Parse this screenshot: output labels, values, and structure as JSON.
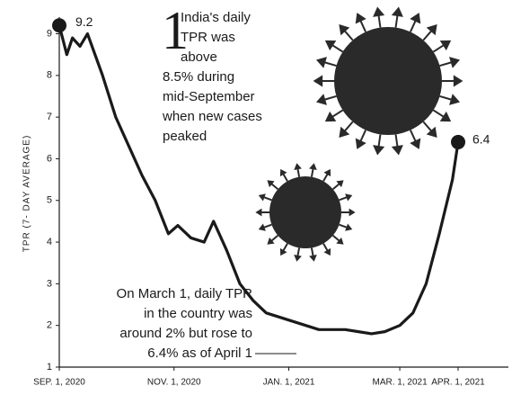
{
  "chart_data": {
    "type": "line",
    "ylabel": "TPR (7- DAY AVERAGE)",
    "x": [
      "2020-09-01",
      "2020-09-05",
      "2020-09-08",
      "2020-09-12",
      "2020-09-16",
      "2020-09-20",
      "2020-09-24",
      "2020-10-01",
      "2020-10-08",
      "2020-10-15",
      "2020-10-22",
      "2020-10-29",
      "2020-11-03",
      "2020-11-10",
      "2020-11-17",
      "2020-11-22",
      "2020-11-29",
      "2020-12-06",
      "2020-12-13",
      "2020-12-20",
      "2020-12-27",
      "2021-01-03",
      "2021-01-10",
      "2021-01-17",
      "2021-01-24",
      "2021-01-31",
      "2021-02-07",
      "2021-02-14",
      "2021-02-21",
      "2021-03-01",
      "2021-03-08",
      "2021-03-15",
      "2021-03-22",
      "2021-03-29",
      "2021-04-01"
    ],
    "series": [
      {
        "color": "#1a1a1a",
        "values": [
          9.2,
          8.5,
          8.9,
          8.7,
          9.0,
          8.5,
          8.0,
          7.0,
          6.3,
          5.6,
          5.0,
          4.2,
          4.4,
          4.1,
          4.0,
          4.5,
          3.8,
          3.0,
          2.6,
          2.3,
          2.2,
          2.1,
          2.0,
          1.9,
          1.9,
          1.9,
          1.85,
          1.8,
          1.85,
          2.0,
          2.3,
          3.0,
          4.2,
          5.5,
          6.4
        ]
      }
    ],
    "xlim": [
      "2020-09-01",
      "2021-04-01"
    ],
    "xticks": [
      {
        "value": "2020-09-01",
        "label": "SEP. 1, 2020"
      },
      {
        "value": "2020-11-01",
        "label": "NOV. 1, 2020"
      },
      {
        "value": "2021-01-01",
        "label": "JAN. 1, 2021"
      },
      {
        "value": "2021-03-01",
        "label": "MAR. 1, 2021"
      },
      {
        "value": "2021-04-01",
        "label": "APR. 1, 2021"
      }
    ],
    "ylim": [
      1,
      9.4
    ],
    "yticks": [
      1,
      2,
      3,
      4,
      5,
      6,
      7,
      8,
      9
    ],
    "annotations": [
      {
        "number": "1",
        "lines": [
          "India's daily",
          "TPR was",
          "above",
          "8.5% during",
          "mid-September",
          "when new cases",
          "peaked"
        ]
      },
      {
        "lines": [
          "On March 1, daily TPR",
          "in the country was",
          "around 2% but rose to",
          "6.4% as of April 1"
        ]
      }
    ]
  }
}
